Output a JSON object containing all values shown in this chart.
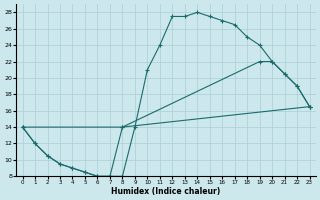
{
  "xlabel": "Humidex (Indice chaleur)",
  "bg_color": "#cce8ec",
  "grid_color": "#aacdd4",
  "line_color": "#1a6b6b",
  "xlim": [
    -0.5,
    23.5
  ],
  "ylim": [
    8,
    29
  ],
  "xticks": [
    0,
    1,
    2,
    3,
    4,
    5,
    6,
    7,
    8,
    9,
    10,
    11,
    12,
    13,
    14,
    15,
    16,
    17,
    18,
    19,
    20,
    21,
    22,
    23
  ],
  "yticks": [
    8,
    10,
    12,
    14,
    16,
    18,
    20,
    22,
    24,
    26,
    28
  ],
  "curve1_x": [
    0,
    1,
    2,
    3,
    4,
    5,
    6,
    7,
    8,
    9,
    10,
    11,
    12,
    13,
    14,
    15,
    16,
    17,
    18,
    19,
    20,
    21,
    22,
    23
  ],
  "curve1_y": [
    14,
    12,
    10.5,
    9.5,
    9,
    8.5,
    8,
    8,
    8,
    14,
    21,
    24,
    27.5,
    27.5,
    28,
    27.5,
    27,
    26.5,
    25,
    24,
    22,
    20.5,
    19,
    16.5
  ],
  "curve2_x": [
    0,
    1,
    2,
    3,
    4,
    5,
    6,
    7,
    8,
    19,
    20,
    21,
    22,
    23
  ],
  "curve2_y": [
    14,
    12,
    10.5,
    9.5,
    9,
    8.5,
    8,
    8,
    14,
    22,
    22,
    20.5,
    19,
    16.5
  ],
  "curve3_x": [
    0,
    8,
    23
  ],
  "curve3_y": [
    14,
    14,
    16.5
  ]
}
